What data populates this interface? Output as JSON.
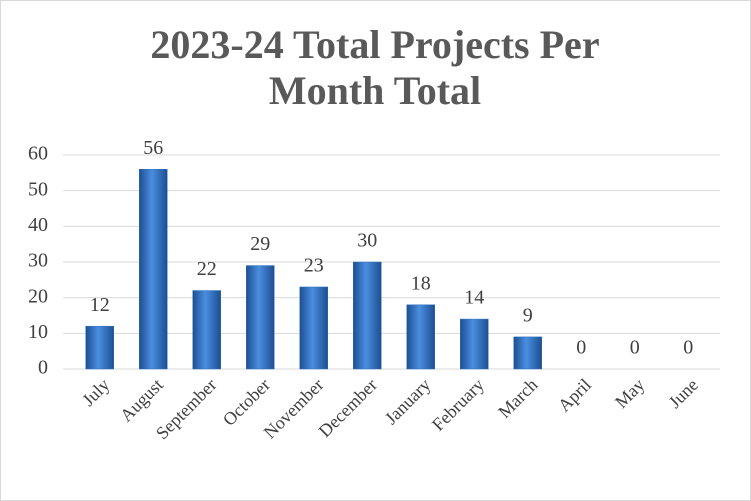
{
  "chart_data": {
    "type": "bar",
    "title": "2023-24 Total Projects Per Month Total",
    "categories": [
      "July",
      "August",
      "September",
      "October",
      "November",
      "December",
      "January",
      "February",
      "March",
      "April",
      "May",
      "June"
    ],
    "values": [
      12,
      56,
      22,
      29,
      23,
      30,
      18,
      14,
      9,
      0,
      0,
      0
    ],
    "color": "#2e6fc0",
    "ylim": [
      0,
      60
    ],
    "yticks": [
      0,
      10,
      20,
      30,
      40,
      50,
      60
    ],
    "grid": true
  }
}
